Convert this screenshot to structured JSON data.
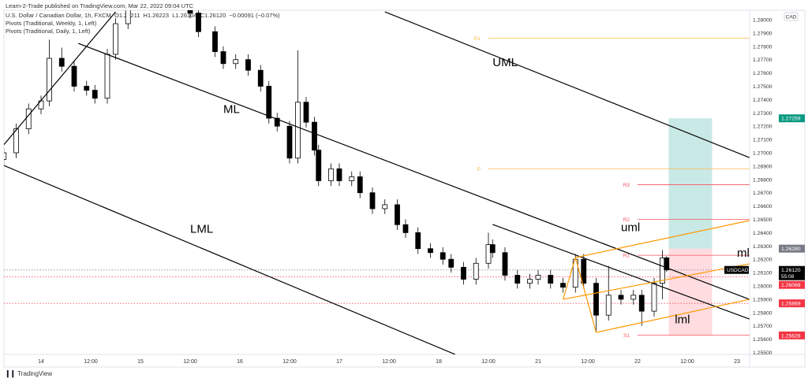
{
  "header": {
    "published": "Learn-2-Trade published on TradingView.com, Mar 22, 2022 09:04 UTC",
    "symbol_line": "U.S. Dollar / Canadian Dollar, 1h, FXCM",
    "ohlc": {
      "open": "O1.26211",
      "high": "H1.26223",
      "low": "L1.26104",
      "close": "C1.26120",
      "change": "−0.00091 (−0.07%)"
    },
    "indicators": [
      "Pivots (Traditional, Weekly, 1, Left)",
      "Pivots (Traditional, Daily, 1, Left)"
    ]
  },
  "footer": {
    "brand": "TradingView",
    "logo_mark": "TV"
  },
  "colors": {
    "up": "#ffffff",
    "down": "#000000",
    "pitchfork": "#000000",
    "schiff": "#ff9800",
    "weekly_pivot": "#ffb74d",
    "daily_pivot": "#f7525f",
    "target": "#b2dfdb",
    "stop": "#ffcdd2",
    "label_red": "#f23645",
    "label_teal": "#089981",
    "label_grey": "#787b86"
  },
  "chart_data": {
    "type": "candlestick",
    "symbol": "USDCAD",
    "currency": "CAD",
    "interval": "1h",
    "ylim": [
      1.2545,
      1.2805
    ],
    "grid": false,
    "price_ticks": [
      1.255,
      1.256,
      1.257,
      1.258,
      1.259,
      1.26,
      1.261,
      1.262,
      1.263,
      1.264,
      1.265,
      1.266,
      1.267,
      1.268,
      1.269,
      1.27,
      1.271,
      1.272,
      1.273,
      1.274,
      1.275,
      1.276,
      1.277,
      1.278,
      1.279,
      1.28
    ],
    "time_ticks": [
      {
        "label": "14",
        "t": "14 00:00"
      },
      {
        "label": "12:00",
        "t": "14 12:00"
      },
      {
        "label": "15",
        "t": "15 00:00"
      },
      {
        "label": "12:00",
        "t": "15 12:00"
      },
      {
        "label": "16",
        "t": "16 00:00"
      },
      {
        "label": "12:00",
        "t": "16 12:00"
      },
      {
        "label": "17",
        "t": "17 00:00"
      },
      {
        "label": "12:00",
        "t": "17 12:00"
      },
      {
        "label": "18",
        "t": "18 00:00"
      },
      {
        "label": "12:00",
        "t": "18 12:00"
      },
      {
        "label": "21",
        "t": "21 00:00"
      },
      {
        "label": "12:00",
        "t": "21 12:00"
      },
      {
        "label": "22",
        "t": "22 00:00"
      },
      {
        "label": "12:00",
        "t": "22 12:00"
      },
      {
        "label": "23",
        "t": "23 00:00"
      }
    ],
    "candles": [
      [
        "13 15:00",
        1.2695,
        1.2704,
        1.2691,
        1.27
      ],
      [
        "13 18:00",
        1.27,
        1.2722,
        1.2696,
        1.2718
      ],
      [
        "13 21:00",
        1.2718,
        1.2737,
        1.2714,
        1.2733
      ],
      [
        "14 00:00",
        1.2733,
        1.2743,
        1.2729,
        1.2739
      ],
      [
        "14 02:00",
        1.2739,
        1.2785,
        1.2735,
        1.2771
      ],
      [
        "14 05:00",
        1.2771,
        1.2779,
        1.2761,
        1.2765
      ],
      [
        "14 08:00",
        1.2765,
        1.2769,
        1.2746,
        1.275
      ],
      [
        "14 11:00",
        1.275,
        1.2754,
        1.2743,
        1.2747
      ],
      [
        "14 13:00",
        1.2747,
        1.2751,
        1.2737,
        1.2741
      ],
      [
        "14 16:00",
        1.2741,
        1.2778,
        1.2737,
        1.2774
      ],
      [
        "14 18:00",
        1.2774,
        1.2801,
        1.277,
        1.2797
      ],
      [
        "14 21:00",
        1.2797,
        1.2819,
        1.2793,
        1.2815
      ],
      [
        "15 03:00",
        1.2815,
        1.2836,
        1.2811,
        1.283
      ],
      [
        "15 08:00",
        1.283,
        1.2834,
        1.2816,
        1.282
      ],
      [
        "15 12:00",
        1.282,
        1.2824,
        1.2801,
        1.2805
      ],
      [
        "15 14:00",
        1.2805,
        1.2809,
        1.2787,
        1.2791
      ],
      [
        "15 18:00",
        1.2791,
        1.2795,
        1.2772,
        1.2776
      ],
      [
        "15 20:00",
        1.2776,
        1.278,
        1.2763,
        1.2767
      ],
      [
        "15 23:00",
        1.2767,
        1.2774,
        1.2763,
        1.277
      ],
      [
        "16 02:00",
        1.277,
        1.2774,
        1.2758,
        1.2762
      ],
      [
        "16 05:00",
        1.2762,
        1.2766,
        1.2746,
        1.275
      ],
      [
        "16 07:00",
        1.275,
        1.2754,
        1.2722,
        1.2726
      ],
      [
        "16 09:00",
        1.2726,
        1.273,
        1.2716,
        1.272
      ],
      [
        "16 12:00",
        1.272,
        1.2724,
        1.2692,
        1.2696
      ],
      [
        "16 14:00",
        1.2696,
        1.2777,
        1.2692,
        1.2738
      ],
      [
        "16 16:00",
        1.2738,
        1.2742,
        1.2719,
        1.2723
      ],
      [
        "16 18:00",
        1.2723,
        1.2727,
        1.2698,
        1.2702
      ],
      [
        "16 19:00",
        1.2702,
        1.2706,
        1.2675,
        1.2679
      ],
      [
        "16 22:00",
        1.2679,
        1.2692,
        1.2675,
        1.2688
      ],
      [
        "17 00:00",
        1.2688,
        1.2692,
        1.2675,
        1.2679
      ],
      [
        "17 03:00",
        1.2679,
        1.2686,
        1.2675,
        1.2682
      ],
      [
        "17 05:00",
        1.2682,
        1.2686,
        1.2666,
        1.267
      ],
      [
        "17 08:00",
        1.267,
        1.2674,
        1.2654,
        1.2658
      ],
      [
        "17 11:00",
        1.2658,
        1.2665,
        1.2654,
        1.2661
      ],
      [
        "17 14:00",
        1.2661,
        1.2665,
        1.2642,
        1.2646
      ],
      [
        "17 16:00",
        1.2646,
        1.265,
        1.2636,
        1.264
      ],
      [
        "17 19:00",
        1.264,
        1.2644,
        1.2624,
        1.2628
      ],
      [
        "17 22:00",
        1.2628,
        1.2632,
        1.2621,
        1.2625
      ],
      [
        "18 01:00",
        1.2625,
        1.2629,
        1.2616,
        1.262
      ],
      [
        "18 03:00",
        1.262,
        1.2624,
        1.261,
        1.2614
      ],
      [
        "18 06:00",
        1.2614,
        1.2618,
        1.2601,
        1.2605
      ],
      [
        "18 09:00",
        1.2605,
        1.2621,
        1.2601,
        1.2617
      ],
      [
        "18 12:00",
        1.2617,
        1.264,
        1.2613,
        1.2631
      ],
      [
        "18 13:00",
        1.2631,
        1.2635,
        1.2621,
        1.2625
      ],
      [
        "18 16:00",
        1.2625,
        1.2629,
        1.2604,
        1.2608
      ],
      [
        "18 19:00",
        1.2608,
        1.2612,
        1.2598,
        1.2602
      ],
      [
        "18 22:00",
        1.2602,
        1.2609,
        1.2598,
        1.2605
      ],
      [
        "21 00:00",
        1.2605,
        1.2612,
        1.2601,
        1.2608
      ],
      [
        "21 03:00",
        1.2608,
        1.2612,
        1.2598,
        1.2602
      ],
      [
        "21 06:00",
        1.2602,
        1.2606,
        1.2595,
        1.2599
      ],
      [
        "21 09:00",
        1.2599,
        1.2624,
        1.2595,
        1.262
      ],
      [
        "21 11:00",
        1.262,
        1.2624,
        1.2598,
        1.2602
      ],
      [
        "21 14:00",
        1.2602,
        1.2606,
        1.2565,
        1.2578
      ],
      [
        "21 17:00",
        1.2578,
        1.2615,
        1.2574,
        1.2593
      ],
      [
        "21 20:00",
        1.2593,
        1.2597,
        1.2586,
        1.259
      ],
      [
        "21 23:00",
        1.259,
        1.2597,
        1.2586,
        1.2593
      ],
      [
        "22 01:00",
        1.2593,
        1.2597,
        1.257,
        1.2581
      ],
      [
        "22 04:00",
        1.2581,
        1.2606,
        1.2577,
        1.2602
      ],
      [
        "22 06:00",
        1.2602,
        1.2627,
        1.259,
        1.2621
      ],
      [
        "22 07:00",
        1.26211,
        1.26223,
        1.26104,
        1.2612
      ]
    ],
    "trendlines": [
      {
        "name": "UML",
        "label": "UML",
        "from": [
          "17 11:00",
          1.28059
        ],
        "to": [
          "23 03:00",
          1.26964
        ],
        "color": "#000000",
        "label_at": [
          "18 13:00",
          1.2765
        ]
      },
      {
        "name": "ML",
        "label": "ML",
        "from": [
          "14 09:00",
          1.27822
        ],
        "to": [
          "23 03:00",
          1.25899
        ],
        "color": "#000000",
        "label_at": [
          "15 20:00",
          1.273
        ]
      },
      {
        "name": "LML",
        "label": "LML",
        "from": [
          "13 15:00",
          1.26905
        ],
        "to": [
          "18 04:00",
          1.25485
        ],
        "color": "#000000",
        "label_at": [
          "15 12:00",
          1.264
        ]
      },
      {
        "name": "handle",
        "label": "",
        "from": [
          "13 15:00",
          1.2706
        ],
        "to": [
          "14 18:00",
          1.28059
        ],
        "color": "#000000"
      },
      {
        "name": "inner",
        "label": "",
        "from": [
          "18 13:00",
          1.26462
        ],
        "to": [
          "23 03:00",
          1.25751
        ],
        "color": "#000000"
      },
      {
        "name": "uml",
        "label": "uml",
        "from": [
          "21 09:00",
          1.26213
        ],
        "to": [
          "23 03:00",
          1.26491
        ],
        "color": "#ff9800",
        "label_at": [
          "21 20:00",
          1.2641
        ]
      },
      {
        "name": "ml",
        "label": "ml",
        "from": [
          "21 06:00",
          1.25899
        ],
        "to": [
          "23 03:00",
          1.26166
        ],
        "color": "#ff9800",
        "label_at": [
          "23 00:00",
          1.2622
        ]
      },
      {
        "name": "lml",
        "label": "lml",
        "from": [
          "21 14:00",
          1.25651
        ],
        "to": [
          "23 03:00",
          1.25899
        ],
        "color": "#ff9800",
        "label_at": [
          "22 09:00",
          1.2572
        ]
      },
      {
        "name": "handle-a",
        "label": "",
        "from": [
          "21 06:00",
          1.25899
        ],
        "to": [
          "21 09:00",
          1.26213
        ],
        "color": "#ff9800"
      },
      {
        "name": "handle-b",
        "label": "",
        "from": [
          "21 09:00",
          1.26213
        ],
        "to": [
          "21 14:00",
          1.25651
        ],
        "color": "#ff9800"
      }
    ],
    "pivots": [
      {
        "label": "R1",
        "price": 1.2786,
        "kind": "weekly",
        "from": "18 12:00"
      },
      {
        "label": "P",
        "price": 1.2688,
        "kind": "weekly",
        "from": "18 12:00"
      },
      {
        "label": "R3",
        "price": 1.2676,
        "kind": "daily",
        "from": "22 00:00"
      },
      {
        "label": "R2",
        "price": 1.265,
        "kind": "daily",
        "from": "22 00:00"
      },
      {
        "label": "R1",
        "price": 1.2623,
        "kind": "daily",
        "from": "22 00:00"
      },
      {
        "label": "S1",
        "price": 1.2563,
        "kind": "daily",
        "from": "22 00:00"
      }
    ],
    "position": {
      "entry": 1.2628,
      "target": 1.27259,
      "stop": 1.25628,
      "from": "22 07:30",
      "to": "22 18:00"
    },
    "dotted_levels": [
      {
        "price": 1.2612,
        "color": "#787b86"
      },
      {
        "price": 1.26068,
        "color": "#f23645"
      },
      {
        "price": 1.25869,
        "color": "#f23645"
      }
    ],
    "price_tags": [
      {
        "text": "1.27259",
        "price": 1.27259,
        "bg": "#089981"
      },
      {
        "text": "1.26280",
        "price": 1.2628,
        "bg": "#787b86"
      },
      {
        "text": "1.26068",
        "price": 1.26068,
        "bg": "#f23645"
      },
      {
        "text": "1.25869",
        "price": 1.25869,
        "bg": "#f23645"
      },
      {
        "text": "1.25628",
        "price": 1.25628,
        "bg": "#f23645"
      }
    ],
    "last_price": {
      "symbol": "USDCAD",
      "price": "1.26120",
      "countdown": "55:08",
      "value": 1.2612
    }
  }
}
